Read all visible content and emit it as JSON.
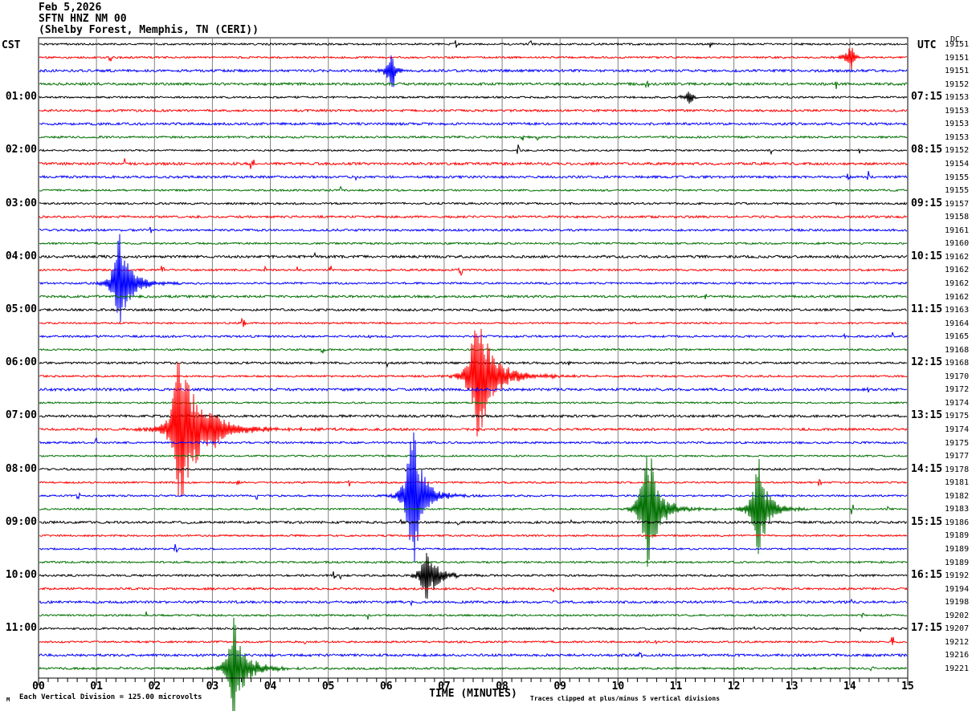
{
  "header": {
    "date": "Feb 5,2026",
    "station": "SFTN HNZ NM 00",
    "location": "(Shelby Forest, Memphis, TN (CERI))"
  },
  "axes": {
    "left_tz": "CST",
    "right_tz": "UTC",
    "dc_header": "DC",
    "left_hour_labels": [
      "01:00",
      "02:00",
      "03:00",
      "04:00",
      "05:00",
      "06:00",
      "07:00",
      "08:00",
      "09:00",
      "10:00",
      "11:00"
    ],
    "right_hour_labels": [
      "07:15",
      "08:15",
      "09:15",
      "10:15",
      "11:15",
      "12:15",
      "13:15",
      "14:15",
      "15:15",
      "16:15",
      "17:15"
    ],
    "x_tick_labels": [
      "00",
      "01",
      "02",
      "03",
      "04",
      "05",
      "06",
      "07",
      "08",
      "09",
      "10",
      "11",
      "12",
      "13",
      "14",
      "15"
    ],
    "x_axis_title": "TIME (MINUTES)"
  },
  "footer": {
    "logo": "M",
    "scale_note": "Each Vertical Division =  125.00 microvolts",
    "clip_note": "Traces clipped at plus/minus 5 vertical divisions"
  },
  "colors": {
    "trace_cycle": [
      "#000000",
      "#ff0000",
      "#0000ff",
      "#007000"
    ],
    "grid": "#808080",
    "frame": "#000000",
    "background": "#ffffff"
  },
  "chart_data": {
    "type": "line",
    "title": "SFTN HNZ NM 00 (Shelby Forest, Memphis, TN (CERI)) helicorder, Feb 5,2026",
    "xlabel": "TIME (MINUTES)",
    "x_range_minutes": [
      0,
      15
    ],
    "minutes_per_row": 15,
    "rows": 48,
    "row_start_cst": "00:00",
    "row_start_utc": "06:15",
    "vertical_division_microvolts": 125.0,
    "clip_divisions": 5,
    "grid": "vertical lines every 1 minute",
    "legend_position": "none",
    "dc_values": [
      19151,
      19151,
      19151,
      19152,
      19153,
      19153,
      19153,
      19153,
      19152,
      19154,
      19155,
      19155,
      19157,
      19158,
      19161,
      19160,
      19162,
      19162,
      19162,
      19162,
      19163,
      19164,
      19165,
      19168,
      19168,
      19170,
      19172,
      19174,
      19175,
      19174,
      19175,
      19177,
      19178,
      19181,
      19182,
      19183,
      19186,
      19189,
      19189,
      19189,
      19192,
      19194,
      19198,
      19202,
      19207,
      19212,
      19216,
      19221
    ],
    "events": [
      {
        "row": 2,
        "color": "red",
        "cst_trace": "00:15",
        "minute": 14.03,
        "amplitude_divisions": 0.8,
        "duration_minutes": 0.08
      },
      {
        "row": 3,
        "color": "blue",
        "cst_trace": "00:30",
        "minute": 6.11,
        "amplitude_divisions": 1.3,
        "duration_minutes": 0.07
      },
      {
        "row": 5,
        "color": "black",
        "cst_trace": "01:00",
        "minute": 11.25,
        "amplitude_divisions": 0.5,
        "duration_minutes": 0.06
      },
      {
        "row": 19,
        "color": "blue",
        "cst_trace": "04:30",
        "minute": 1.39,
        "amplitude_divisions": 2.9,
        "duration_minutes": 0.55
      },
      {
        "row": 26,
        "color": "red",
        "cst_trace": "06:15",
        "minute": 7.55,
        "amplitude_divisions": 4.6,
        "duration_minutes": 0.75
      },
      {
        "row": 30,
        "color": "red",
        "cst_trace": "07:15",
        "minute": 2.41,
        "amplitude_divisions": 5.0,
        "duration_minutes": 1.0
      },
      {
        "row": 30,
        "color": "red",
        "cst_trace": "07:15",
        "minute": 3.05,
        "amplitude_divisions": 0.5,
        "duration_minutes": 0.3
      },
      {
        "row": 35,
        "color": "blue",
        "cst_trace": "08:30",
        "minute": 6.45,
        "amplitude_divisions": 5.2,
        "duration_minutes": 0.45
      },
      {
        "row": 36,
        "color": "green",
        "cst_trace": "08:45",
        "minute": 10.5,
        "amplitude_divisions": 4.8,
        "duration_minutes": 0.5
      },
      {
        "row": 36,
        "color": "green",
        "cst_trace": "08:45",
        "minute": 12.42,
        "amplitude_divisions": 3.2,
        "duration_minutes": 0.45
      },
      {
        "row": 41,
        "color": "black",
        "cst_trace": "10:00",
        "minute": 6.7,
        "amplitude_divisions": 1.7,
        "duration_minutes": 0.5
      },
      {
        "row": 48,
        "color": "green",
        "cst_trace": "11:45",
        "minute": 3.36,
        "amplitude_divisions": 3.0,
        "duration_minutes": 0.6
      }
    ]
  }
}
